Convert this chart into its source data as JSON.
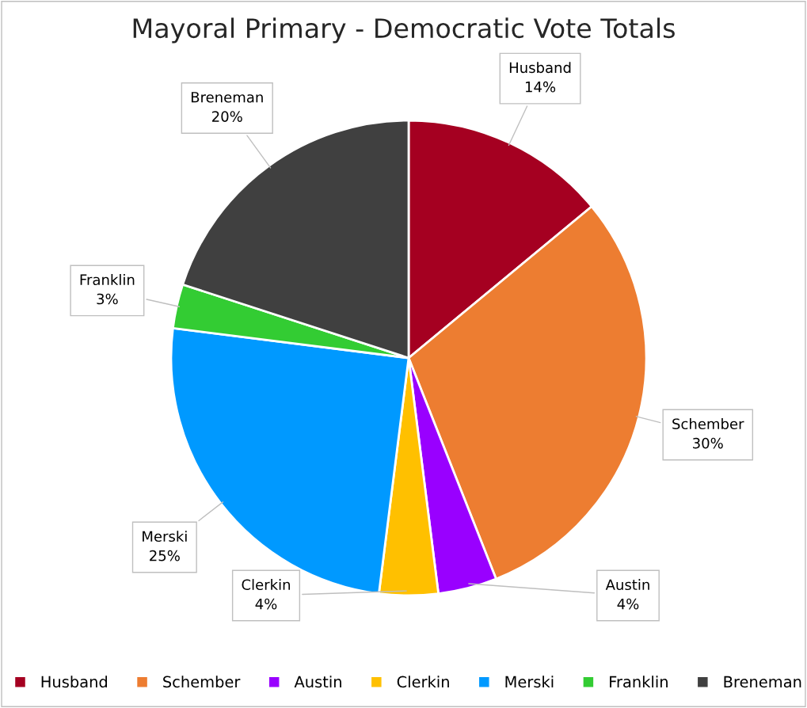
{
  "chart_data": {
    "type": "pie",
    "title": "Mayoral Primary - Democratic Vote Totals",
    "categories": [
      "Husband",
      "Schember",
      "Austin",
      "Clerkin",
      "Merski",
      "Franklin",
      "Breneman"
    ],
    "values": [
      14,
      30,
      4,
      4,
      25,
      3,
      20
    ],
    "colors": [
      "#a50021",
      "#ed7d31",
      "#9900ff",
      "#ffc000",
      "#0099ff",
      "#33cc33",
      "#404040"
    ],
    "value_labels": [
      "14%",
      "30%",
      "4%",
      "4%",
      "25%",
      "3%",
      "20%"
    ],
    "legend": "bottom"
  }
}
